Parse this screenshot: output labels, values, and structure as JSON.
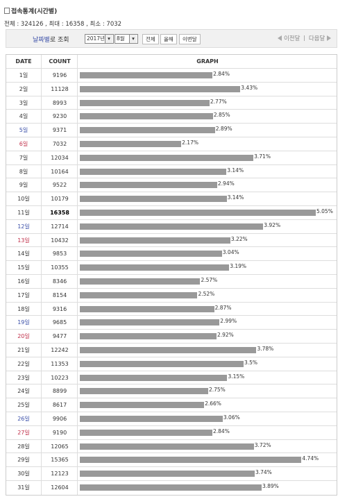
{
  "header": {
    "title": "접속통계(시간별)",
    "summary": "전체 : 324126 , 최대 : 16358 , 최소 : 7032"
  },
  "controls": {
    "label_highlight": "날짜별",
    "label_rest": "로 조회",
    "year": "2017년",
    "month": "8월",
    "buttons": [
      "전체",
      "올해",
      "이번달"
    ],
    "prev": "이전달",
    "next": "다음달"
  },
  "table": {
    "columns": [
      "DATE",
      "COUNT",
      "GRAPH"
    ],
    "bar_color": "#999999",
    "rows": [
      {
        "date": "1일",
        "count": 9196,
        "percent": "2.84%"
      },
      {
        "date": "2일",
        "count": 11128,
        "percent": "3.43%"
      },
      {
        "date": "3일",
        "count": 8993,
        "percent": "2.77%"
      },
      {
        "date": "4일",
        "count": 9230,
        "percent": "2.85%"
      },
      {
        "date": "5일",
        "count": 9371,
        "percent": "2.89%",
        "date_color": "#3a4fa8"
      },
      {
        "date": "6일",
        "count": 7032,
        "percent": "2.17%",
        "date_color": "#c0304a"
      },
      {
        "date": "7일",
        "count": 12034,
        "percent": "3.71%"
      },
      {
        "date": "8일",
        "count": 10164,
        "percent": "3.14%"
      },
      {
        "date": "9일",
        "count": 9522,
        "percent": "2.94%"
      },
      {
        "date": "10일",
        "count": 10179,
        "percent": "3.14%"
      },
      {
        "date": "11일",
        "count": 16358,
        "percent": "5.05%"
      },
      {
        "date": "12일",
        "count": 12714,
        "percent": "3.92%",
        "date_color": "#3a4fa8"
      },
      {
        "date": "13일",
        "count": 10432,
        "percent": "3.22%",
        "date_color": "#c0304a"
      },
      {
        "date": "14일",
        "count": 9853,
        "percent": "3.04%"
      },
      {
        "date": "15일",
        "count": 10355,
        "percent": "3.19%"
      },
      {
        "date": "16일",
        "count": 8346,
        "percent": "2.57%"
      },
      {
        "date": "17일",
        "count": 8154,
        "percent": "2.52%"
      },
      {
        "date": "18일",
        "count": 9316,
        "percent": "2.87%"
      },
      {
        "date": "19일",
        "count": 9685,
        "percent": "2.99%",
        "date_color": "#3a4fa8"
      },
      {
        "date": "20일",
        "count": 9477,
        "percent": "2.92%",
        "date_color": "#c0304a"
      },
      {
        "date": "21일",
        "count": 12242,
        "percent": "3.78%"
      },
      {
        "date": "22일",
        "count": 11353,
        "percent": "3.5%"
      },
      {
        "date": "23일",
        "count": 10223,
        "percent": "3.15%"
      },
      {
        "date": "24일",
        "count": 8899,
        "percent": "2.75%"
      },
      {
        "date": "25일",
        "count": 8617,
        "percent": "2.66%"
      },
      {
        "date": "26일",
        "count": 9906,
        "percent": "3.06%",
        "date_color": "#3a4fa8"
      },
      {
        "date": "27일",
        "count": 9190,
        "percent": "2.84%",
        "date_color": "#c0304a"
      },
      {
        "date": "28일",
        "count": 12065,
        "percent": "3.72%"
      },
      {
        "date": "29일",
        "count": 15365,
        "percent": "4.74%"
      },
      {
        "date": "30일",
        "count": 12123,
        "percent": "3.74%"
      },
      {
        "date": "31일",
        "count": 12604,
        "percent": "3.89%"
      }
    ]
  }
}
